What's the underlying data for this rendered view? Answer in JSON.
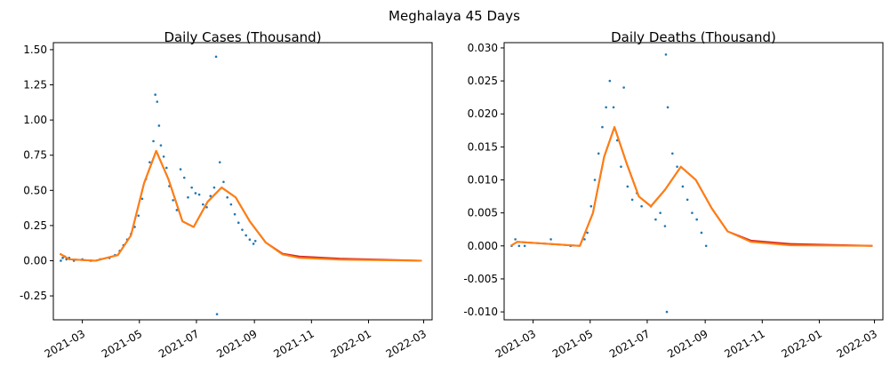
{
  "figure": {
    "suptitle": "Meghalaya 45 Days"
  },
  "colors": {
    "scatter": "#1f77b4",
    "fit_red": "#d62728",
    "fit_orange": "#ff7f0e"
  },
  "chart_data": [
    {
      "type": "scatter",
      "title": "Daily Cases (Thousand)",
      "xlabel": "",
      "ylabel": "",
      "xlim": [
        "2022-02-01",
        "2022-03-15"
      ],
      "ylim": [
        -0.42,
        1.55
      ],
      "x_ticks": [
        "2021-03",
        "2021-05",
        "2021-07",
        "2021-09",
        "2021-11",
        "2022-01",
        "2022-03"
      ],
      "y_ticks": [
        "-0.25",
        "0.00",
        "0.25",
        "0.50",
        "0.75",
        "1.00",
        "1.25",
        "1.50"
      ],
      "grid": false,
      "series": [
        {
          "kind": "points",
          "points": [
            [
              "2021-02-06",
              0.0
            ],
            [
              "2021-02-08",
              0.02
            ],
            [
              "2021-02-10",
              0.03
            ],
            [
              "2021-02-12",
              0.01
            ],
            [
              "2021-02-15",
              0.02
            ],
            [
              "2021-02-20",
              0.0
            ],
            [
              "2021-03-01",
              0.01
            ],
            [
              "2021-03-10",
              0.0
            ],
            [
              "2021-03-20",
              0.01
            ],
            [
              "2021-03-30",
              0.02
            ],
            [
              "2021-04-05",
              0.04
            ],
            [
              "2021-04-10",
              0.07
            ],
            [
              "2021-04-14",
              0.11
            ],
            [
              "2021-04-18",
              0.15
            ],
            [
              "2021-04-22",
              0.19
            ],
            [
              "2021-04-26",
              0.24
            ],
            [
              "2021-04-30",
              0.32
            ],
            [
              "2021-05-04",
              0.44
            ],
            [
              "2021-05-08",
              0.58
            ],
            [
              "2021-05-12",
              0.7
            ],
            [
              "2021-05-16",
              0.85
            ],
            [
              "2021-05-18",
              1.18
            ],
            [
              "2021-05-20",
              1.13
            ],
            [
              "2021-05-22",
              0.96
            ],
            [
              "2021-05-24",
              0.82
            ],
            [
              "2021-05-27",
              0.74
            ],
            [
              "2021-05-30",
              0.66
            ],
            [
              "2021-06-02",
              0.53
            ],
            [
              "2021-06-06",
              0.43
            ],
            [
              "2021-06-10",
              0.36
            ],
            [
              "2021-06-14",
              0.65
            ],
            [
              "2021-06-18",
              0.59
            ],
            [
              "2021-06-22",
              0.45
            ],
            [
              "2021-06-26",
              0.52
            ],
            [
              "2021-06-30",
              0.48
            ],
            [
              "2021-07-04",
              0.47
            ],
            [
              "2021-07-08",
              0.4
            ],
            [
              "2021-07-12",
              0.38
            ],
            [
              "2021-07-16",
              0.46
            ],
            [
              "2021-07-20",
              0.52
            ],
            [
              "2021-07-22",
              1.45
            ],
            [
              "2021-07-23",
              -0.38
            ],
            [
              "2021-07-26",
              0.7
            ],
            [
              "2021-07-30",
              0.56
            ],
            [
              "2021-08-03",
              0.45
            ],
            [
              "2021-08-07",
              0.4
            ],
            [
              "2021-08-11",
              0.33
            ],
            [
              "2021-08-15",
              0.27
            ],
            [
              "2021-08-19",
              0.22
            ],
            [
              "2021-08-23",
              0.18
            ],
            [
              "2021-08-27",
              0.15
            ],
            [
              "2021-08-31",
              0.12
            ],
            [
              "2021-09-02",
              0.14
            ]
          ]
        },
        {
          "kind": "line",
          "color": "red",
          "points": [
            [
              "2021-02-05",
              0.05
            ],
            [
              "2021-02-15",
              0.01
            ],
            [
              "2021-03-15",
              0.0
            ],
            [
              "2021-04-08",
              0.04
            ],
            [
              "2021-04-22",
              0.18
            ],
            [
              "2021-05-06",
              0.55
            ],
            [
              "2021-05-19",
              0.78
            ],
            [
              "2021-06-01",
              0.58
            ],
            [
              "2021-06-16",
              0.28
            ],
            [
              "2021-06-28",
              0.24
            ],
            [
              "2021-07-13",
              0.42
            ],
            [
              "2021-07-28",
              0.52
            ],
            [
              "2021-08-12",
              0.45
            ],
            [
              "2021-08-27",
              0.28
            ],
            [
              "2021-09-13",
              0.13
            ],
            [
              "2021-10-01",
              0.05
            ],
            [
              "2021-10-19",
              0.03
            ],
            [
              "2021-12-01",
              0.015
            ],
            [
              "2022-02-27",
              0.0
            ]
          ]
        },
        {
          "kind": "line",
          "color": "orange",
          "points": [
            [
              "2021-02-05",
              0.05
            ],
            [
              "2021-02-15",
              0.01
            ],
            [
              "2021-03-15",
              0.0
            ],
            [
              "2021-04-08",
              0.04
            ],
            [
              "2021-04-22",
              0.18
            ],
            [
              "2021-05-06",
              0.55
            ],
            [
              "2021-05-19",
              0.78
            ],
            [
              "2021-06-01",
              0.58
            ],
            [
              "2021-06-16",
              0.28
            ],
            [
              "2021-06-28",
              0.24
            ],
            [
              "2021-07-13",
              0.42
            ],
            [
              "2021-07-28",
              0.52
            ],
            [
              "2021-08-12",
              0.45
            ],
            [
              "2021-08-27",
              0.28
            ],
            [
              "2021-09-13",
              0.13
            ],
            [
              "2021-10-01",
              0.045
            ],
            [
              "2021-10-19",
              0.02
            ],
            [
              "2021-12-01",
              0.008
            ],
            [
              "2022-02-27",
              0.0
            ]
          ]
        }
      ]
    },
    {
      "type": "scatter",
      "title": "Daily Deaths (Thousand)",
      "xlabel": "",
      "ylabel": "",
      "xlim": [
        "2022-02-01",
        "2022-03-15"
      ],
      "ylim": [
        -0.0112,
        0.0308
      ],
      "x_ticks": [
        "2021-03",
        "2021-05",
        "2021-07",
        "2021-09",
        "2021-11",
        "2022-01",
        "2022-03"
      ],
      "y_ticks": [
        "-0.010",
        "-0.005",
        "0.000",
        "0.005",
        "0.010",
        "0.015",
        "0.020",
        "0.025",
        "0.030"
      ],
      "grid": false,
      "series": [
        {
          "kind": "points",
          "points": [
            [
              "2021-02-06",
              0.0
            ],
            [
              "2021-02-10",
              0.001
            ],
            [
              "2021-02-14",
              0.0
            ],
            [
              "2021-02-20",
              0.0
            ],
            [
              "2021-03-20",
              0.001
            ],
            [
              "2021-04-10",
              0.0
            ],
            [
              "2021-04-25",
              0.001
            ],
            [
              "2021-04-28",
              0.002
            ],
            [
              "2021-05-02",
              0.006
            ],
            [
              "2021-05-06",
              0.01
            ],
            [
              "2021-05-10",
              0.014
            ],
            [
              "2021-05-14",
              0.018
            ],
            [
              "2021-05-18",
              0.021
            ],
            [
              "2021-05-22",
              0.025
            ],
            [
              "2021-05-26",
              0.021
            ],
            [
              "2021-05-30",
              0.016
            ],
            [
              "2021-06-03",
              0.012
            ],
            [
              "2021-06-06",
              0.024
            ],
            [
              "2021-06-10",
              0.009
            ],
            [
              "2021-06-15",
              0.007
            ],
            [
              "2021-06-20",
              0.008
            ],
            [
              "2021-06-25",
              0.006
            ],
            [
              "2021-07-05",
              0.006
            ],
            [
              "2021-07-10",
              0.004
            ],
            [
              "2021-07-15",
              0.005
            ],
            [
              "2021-07-20",
              0.003
            ],
            [
              "2021-07-21",
              0.029
            ],
            [
              "2021-07-22",
              -0.01
            ],
            [
              "2021-07-23",
              0.021
            ],
            [
              "2021-07-28",
              0.014
            ],
            [
              "2021-08-02",
              0.012
            ],
            [
              "2021-08-08",
              0.009
            ],
            [
              "2021-08-13",
              0.007
            ],
            [
              "2021-08-18",
              0.005
            ],
            [
              "2021-08-23",
              0.004
            ],
            [
              "2021-08-28",
              0.002
            ],
            [
              "2021-09-02",
              0.0
            ]
          ]
        },
        {
          "kind": "line",
          "color": "red",
          "points": [
            [
              "2021-02-05",
              0.0
            ],
            [
              "2021-02-12",
              0.0006
            ],
            [
              "2021-04-20",
              0.0
            ],
            [
              "2021-05-04",
              0.005
            ],
            [
              "2021-05-16",
              0.0135
            ],
            [
              "2021-05-27",
              0.018
            ],
            [
              "2021-06-09",
              0.0125
            ],
            [
              "2021-06-22",
              0.0075
            ],
            [
              "2021-07-05",
              0.006
            ],
            [
              "2021-07-20",
              0.0085
            ],
            [
              "2021-08-06",
              0.012
            ],
            [
              "2021-08-22",
              0.01
            ],
            [
              "2021-09-08",
              0.0057
            ],
            [
              "2021-09-25",
              0.0022
            ],
            [
              "2021-10-20",
              0.0008
            ],
            [
              "2021-12-01",
              0.0003
            ],
            [
              "2022-02-27",
              0.0
            ]
          ]
        },
        {
          "kind": "line",
          "color": "orange",
          "points": [
            [
              "2021-02-05",
              0.0
            ],
            [
              "2021-02-12",
              0.0006
            ],
            [
              "2021-04-20",
              0.0
            ],
            [
              "2021-05-04",
              0.005
            ],
            [
              "2021-05-16",
              0.0135
            ],
            [
              "2021-05-27",
              0.018
            ],
            [
              "2021-06-09",
              0.0125
            ],
            [
              "2021-06-22",
              0.0075
            ],
            [
              "2021-07-05",
              0.006
            ],
            [
              "2021-07-20",
              0.0085
            ],
            [
              "2021-08-06",
              0.012
            ],
            [
              "2021-08-22",
              0.01
            ],
            [
              "2021-09-08",
              0.0057
            ],
            [
              "2021-09-25",
              0.0022
            ],
            [
              "2021-10-20",
              0.0006
            ],
            [
              "2021-12-01",
              0.0001
            ],
            [
              "2022-02-27",
              0.0
            ]
          ]
        }
      ]
    }
  ]
}
